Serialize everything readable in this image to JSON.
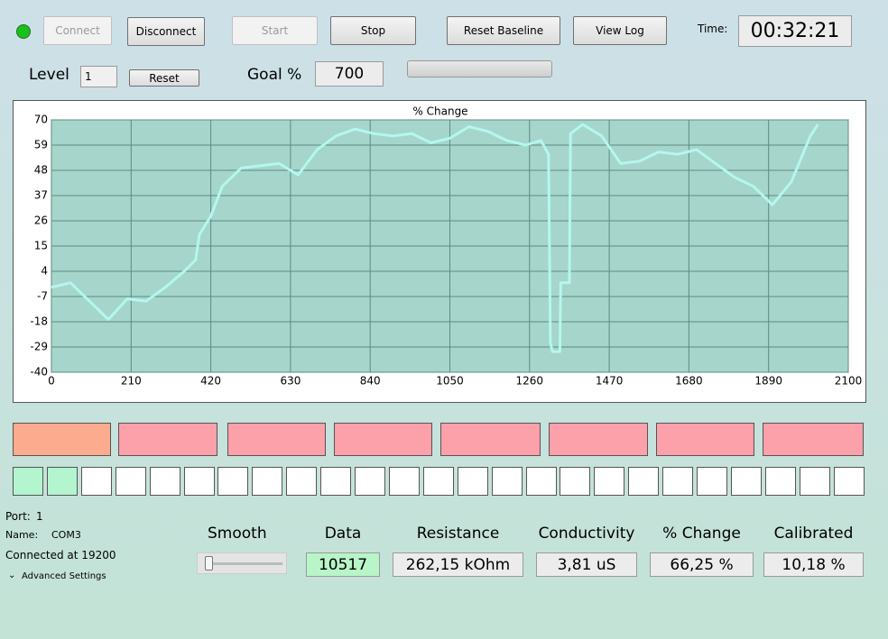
{
  "toolbar": {
    "connect": "Connect",
    "disconnect": "Disconnect",
    "start": "Start",
    "stop": "Stop",
    "reset_baseline": "Reset Baseline",
    "view_log": "View Log",
    "time_label": "Time:",
    "time": "00:32:21"
  },
  "level": {
    "label": "Level",
    "value": "1",
    "reset": "Reset",
    "goal_label": "Goal %",
    "goal": "700"
  },
  "chart_data": {
    "type": "line",
    "title": "% Change",
    "xlim": [
      0,
      2100
    ],
    "xticks": [
      0,
      210,
      420,
      630,
      840,
      1050,
      1260,
      1470,
      1680,
      1890,
      2100
    ],
    "ylim": [
      -40,
      70
    ],
    "yticks": [
      -40,
      -29,
      -18,
      -7,
      4,
      15,
      26,
      37,
      48,
      59,
      70
    ],
    "grid": true,
    "series": [
      {
        "color": "#b4f7ef",
        "x": [
          0,
          50,
          150,
          200,
          250,
          300,
          350,
          380,
          390,
          420,
          450,
          500,
          550,
          600,
          650,
          700,
          750,
          800,
          850,
          900,
          950,
          1000,
          1050,
          1100,
          1150,
          1200,
          1250,
          1290,
          1310,
          1315,
          1320,
          1340,
          1342,
          1365,
          1368,
          1400,
          1450,
          1500,
          1550,
          1600,
          1650,
          1700,
          1750,
          1800,
          1850,
          1900,
          1950,
          2000,
          2020
        ],
        "values": [
          -3,
          -1,
          -17,
          -8,
          -9,
          -3,
          4,
          9,
          20,
          28,
          41,
          49,
          50,
          51,
          46,
          57,
          63,
          66,
          64,
          63,
          64,
          60,
          62,
          67,
          65,
          61,
          59,
          61,
          55,
          -27,
          -31,
          -31,
          -1,
          -1,
          64,
          68,
          63,
          51,
          52,
          56,
          55,
          57,
          51,
          45,
          41,
          33,
          43,
          63,
          68
        ]
      }
    ]
  },
  "status": {
    "port_label": "Port:",
    "port": "1",
    "name_label": "Name:",
    "name": "COM3",
    "connected": "Connected at 19200",
    "advanced": "Advanced Settings"
  },
  "readouts": {
    "smooth": "Smooth",
    "items": [
      {
        "label": "Data",
        "value": "10517"
      },
      {
        "label": "Resistance",
        "value": "262,15 kOhm"
      },
      {
        "label": "Conductivity",
        "value": "3,81 uS"
      },
      {
        "label": "% Change",
        "value": "66,25 %"
      },
      {
        "label": "Calibrated",
        "value": "10,18 %"
      }
    ]
  }
}
